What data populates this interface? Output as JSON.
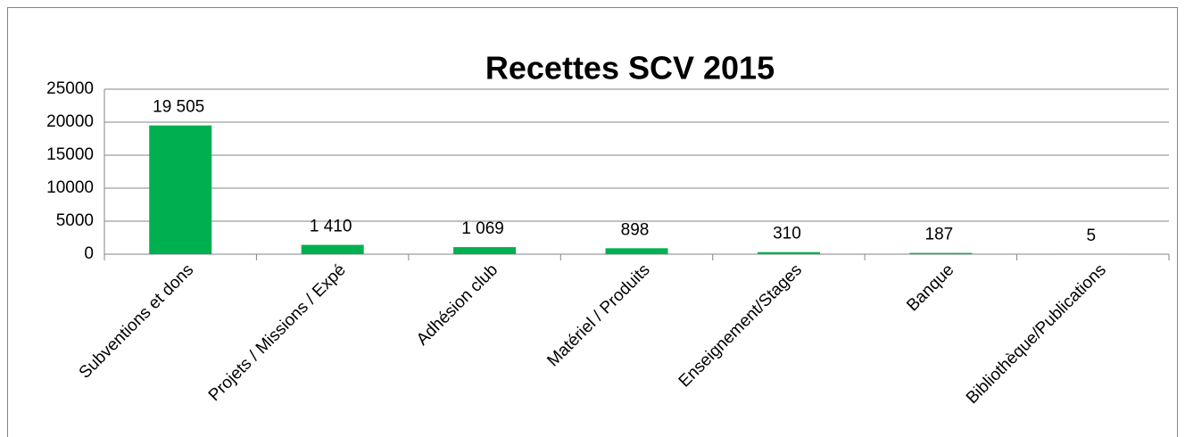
{
  "chart_data": {
    "type": "bar",
    "title": "Recettes SCV 2015",
    "categories": [
      "Subventions et dons",
      "Projets / Missions / Expé",
      "Adhésion club",
      "Matériel / Produits",
      "Enseignement/Stages",
      "Banque",
      "Bibliothèque/Publications"
    ],
    "values": [
      19505,
      1410,
      1069,
      898,
      310,
      187,
      5
    ],
    "value_labels": [
      "19 505",
      "1 410",
      "1 069",
      "898",
      "310",
      "187",
      "5"
    ],
    "color": "#00b050",
    "ylim": [
      0,
      25000
    ],
    "yticks": [
      0,
      5000,
      10000,
      15000,
      20000,
      25000
    ],
    "grid": true
  }
}
